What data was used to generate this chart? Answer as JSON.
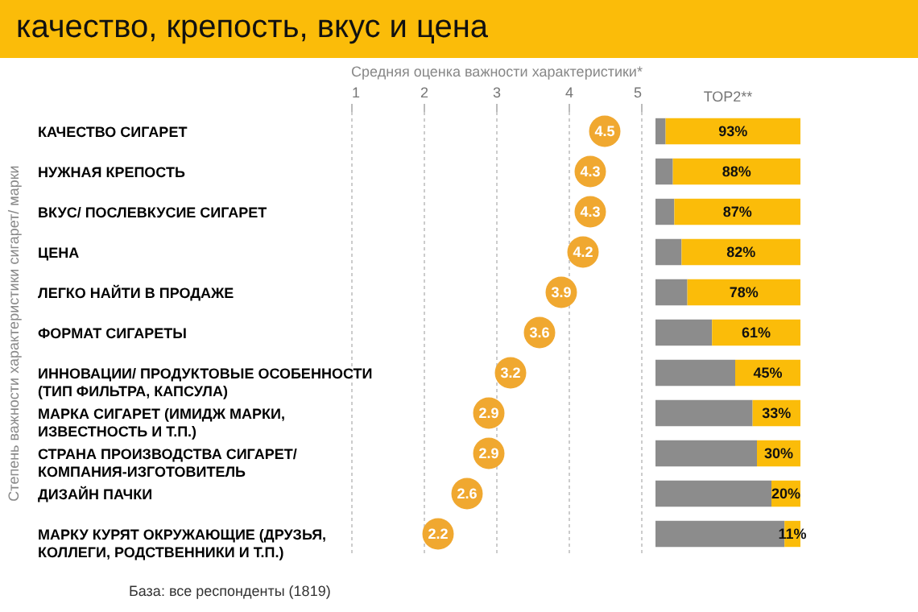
{
  "chart_data": [
    {
      "type": "scatter",
      "title": "качество, крепость, вкус и цена",
      "xlabel": "Средняя оценка важности характеристики*",
      "ylabel": "Степень важности характеристики сигарет/ марки",
      "orientation": "horizontal",
      "categories": [
        "КАЧЕСТВО СИГАРЕТ",
        "НУЖНАЯ КРЕПОСТЬ",
        "ВКУС/ ПОСЛЕВКУСИЕ СИГАРЕТ",
        "ЦЕНА",
        "ЛЕГКО НАЙТИ В ПРОДАЖЕ",
        "ФОРМАТ СИГАРЕТЫ",
        "ИННОВАЦИИ/ ПРОДУКТОВЫЕ ОСОБЕННОСТИ (ТИП ФИЛЬТРА, КАПСУЛА)",
        "МАРКА СИГАРЕТ (ИМИДЖ МАРКИ, ИЗВЕСТНОСТЬ И Т.П.)",
        "СТРАНА ПРОИЗВОДСТВА СИГАРЕТ/ КОМПАНИЯ-ИЗГОТОВИТЕЛЬ",
        "ДИЗАЙН ПАЧКИ",
        "МАРКУ КУРЯТ ОКРУЖАЮЩИЕ (ДРУЗЬЯ, КОЛЛЕГИ, РОДСТВЕННИКИ И Т.П.)"
      ],
      "values": [
        4.5,
        4.3,
        4.3,
        4.2,
        3.9,
        3.6,
        3.2,
        2.9,
        2.9,
        2.6,
        2.2
      ],
      "color": "#f0a830",
      "marker": "circle",
      "data_labels": true,
      "xlim": [
        1,
        5
      ],
      "xticks": [
        1,
        2,
        3,
        4,
        5
      ],
      "grid": "x",
      "annotations": [
        "База: все респонденты (1819)"
      ]
    },
    {
      "type": "bar",
      "title": "TOP2**",
      "orientation": "horizontal",
      "stacked": true,
      "tick_labels": false,
      "categories": [
        null,
        null,
        null,
        null,
        null,
        null,
        null,
        null,
        null,
        null,
        null
      ],
      "xlim": [
        0,
        100
      ],
      "series": [
        {
          "color": "#8c8c8c",
          "values": [
            7,
            12,
            13,
            18,
            22,
            39,
            55,
            67,
            70,
            80,
            89
          ]
        },
        {
          "color": "#fbbc09",
          "values": [
            93,
            88,
            87,
            82,
            78,
            61,
            45,
            33,
            30,
            20,
            11
          ],
          "value_labels": [
            "93%",
            "88%",
            "87%",
            "82%",
            "78%",
            "61%",
            "45%",
            "33%",
            "30%",
            "20%",
            "11%"
          ]
        }
      ]
    }
  ]
}
